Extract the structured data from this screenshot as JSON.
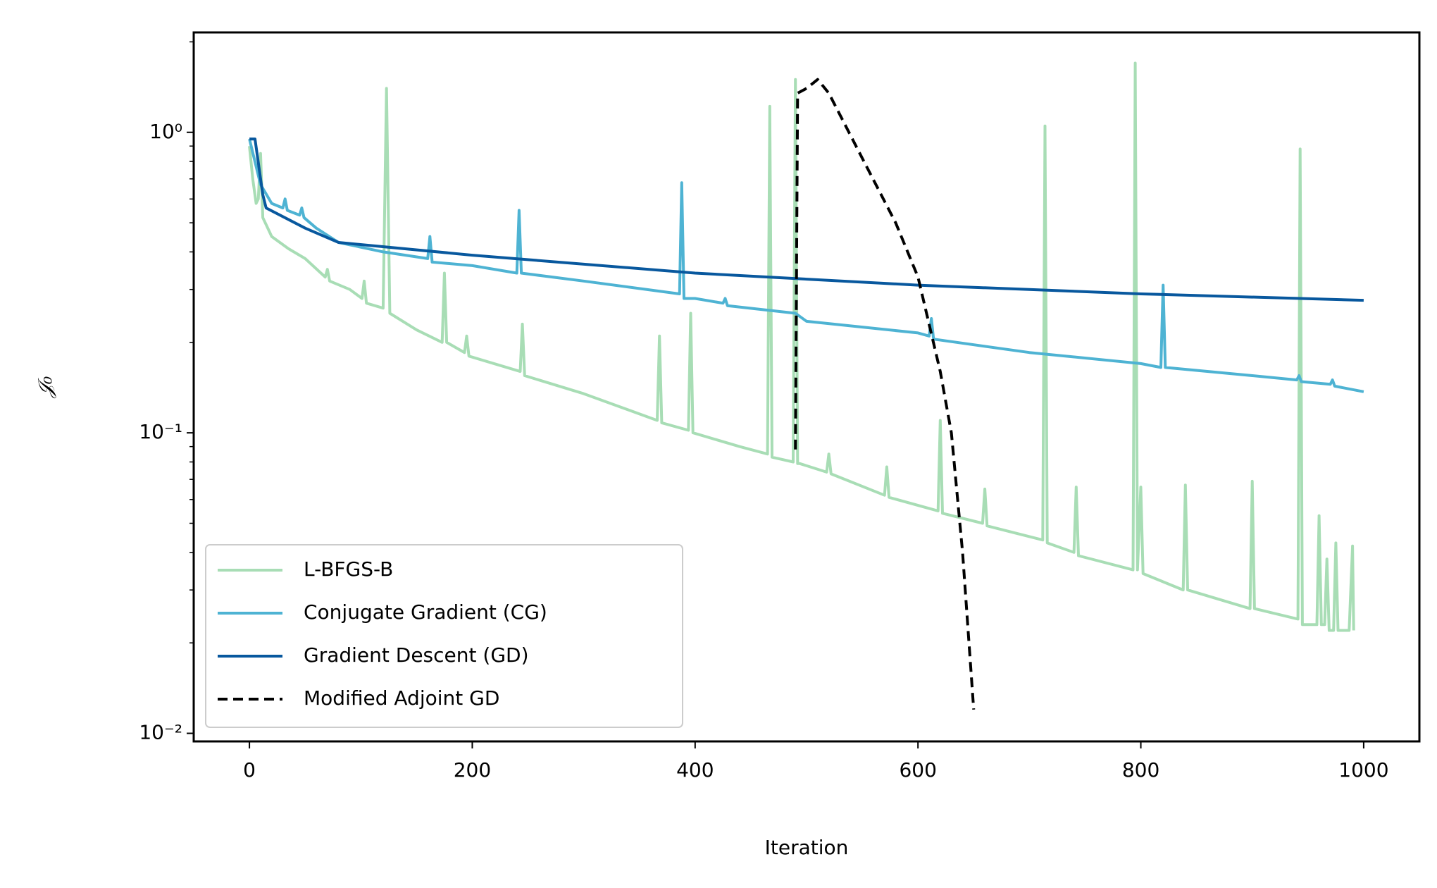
{
  "chart_data": {
    "type": "line",
    "xlabel": "Iteration",
    "ylabel": "𝒥₀",
    "xlim": [
      -50,
      1050
    ],
    "ylim": [
      0.0094,
      2.15
    ],
    "yscale": "log",
    "xticks": [
      0,
      200,
      400,
      600,
      800,
      1000
    ],
    "yticks": [
      {
        "value": 0.01,
        "label": "10⁻²"
      },
      {
        "value": 0.1,
        "label": "10⁻¹"
      },
      {
        "value": 1,
        "label": "10⁰"
      }
    ],
    "yminorticks": [
      0.02,
      0.03,
      0.04,
      0.05,
      0.06,
      0.07,
      0.08,
      0.09,
      0.2,
      0.3,
      0.4,
      0.5,
      0.6,
      0.7,
      0.8,
      0.9,
      2
    ],
    "legend": "lower left",
    "series": [
      {
        "name": "L-BFGS-B",
        "color": "#a8ddb5",
        "dash": false,
        "x": [
          0,
          3,
          6,
          8,
          10,
          12,
          20,
          35,
          50,
          68,
          70,
          72,
          90,
          101,
          103,
          105,
          120,
          123,
          126,
          150,
          173,
          175,
          177,
          193,
          195,
          197,
          243,
          245,
          247,
          300,
          366,
          368,
          370,
          394,
          396,
          398,
          440,
          465,
          467,
          469,
          488,
          490,
          492,
          494,
          518,
          520,
          522,
          570,
          572,
          574,
          618,
          620,
          622,
          658,
          660,
          662,
          712,
          714,
          716,
          740,
          742,
          744,
          793,
          795,
          797,
          800,
          802,
          838,
          840,
          842,
          898,
          900,
          902,
          941,
          943,
          945,
          958,
          960,
          962,
          965,
          967,
          969,
          973,
          975,
          977,
          987,
          990,
          991
        ],
        "values": [
          0.9,
          0.7,
          0.58,
          0.6,
          0.85,
          0.52,
          0.45,
          0.41,
          0.38,
          0.33,
          0.35,
          0.32,
          0.3,
          0.28,
          0.32,
          0.27,
          0.26,
          1.4,
          0.25,
          0.22,
          0.2,
          0.34,
          0.2,
          0.185,
          0.21,
          0.18,
          0.16,
          0.23,
          0.155,
          0.135,
          0.11,
          0.21,
          0.108,
          0.102,
          0.25,
          0.1,
          0.09,
          0.085,
          1.22,
          0.083,
          0.08,
          1.5,
          0.079,
          0.079,
          0.074,
          0.085,
          0.073,
          0.062,
          0.077,
          0.061,
          0.055,
          0.11,
          0.054,
          0.05,
          0.065,
          0.049,
          0.044,
          1.05,
          0.043,
          0.04,
          0.066,
          0.039,
          0.035,
          1.7,
          0.035,
          0.066,
          0.034,
          0.03,
          0.067,
          0.03,
          0.026,
          0.069,
          0.026,
          0.024,
          0.88,
          0.023,
          0.023,
          0.053,
          0.023,
          0.023,
          0.038,
          0.022,
          0.022,
          0.043,
          0.022,
          0.022,
          0.042,
          0.022
        ]
      },
      {
        "name": "Conjugate Gradient (CG)",
        "color": "#4eb3d3",
        "dash": false,
        "x": [
          0,
          10,
          20,
          30,
          32,
          34,
          45,
          47,
          49,
          60,
          80,
          120,
          160,
          162,
          164,
          200,
          240,
          242,
          244,
          300,
          386,
          388,
          390,
          400,
          425,
          427,
          429,
          490,
          500,
          600,
          610,
          612,
          614,
          700,
          800,
          818,
          820,
          822,
          900,
          940,
          942,
          944,
          970,
          972,
          974,
          1000
        ],
        "values": [
          0.95,
          0.67,
          0.58,
          0.56,
          0.6,
          0.55,
          0.53,
          0.56,
          0.52,
          0.48,
          0.43,
          0.4,
          0.38,
          0.45,
          0.37,
          0.36,
          0.34,
          0.55,
          0.34,
          0.32,
          0.29,
          0.68,
          0.28,
          0.28,
          0.27,
          0.28,
          0.265,
          0.25,
          0.235,
          0.215,
          0.21,
          0.24,
          0.205,
          0.185,
          0.17,
          0.165,
          0.31,
          0.165,
          0.155,
          0.15,
          0.155,
          0.148,
          0.145,
          0.15,
          0.143,
          0.137
        ]
      },
      {
        "name": "Gradient Descent (GD)",
        "color": "#08589e",
        "dash": false,
        "x": [
          0,
          5,
          12,
          15,
          50,
          80,
          200,
          400,
          600,
          800,
          1000
        ],
        "values": [
          0.95,
          0.95,
          0.62,
          0.56,
          0.48,
          0.43,
          0.39,
          0.34,
          0.31,
          0.29,
          0.276
        ]
      },
      {
        "name": "Modified Adjoint GD",
        "color": "#000000",
        "dash": true,
        "x": [
          490,
          492,
          500,
          510,
          520,
          550,
          580,
          600,
          620,
          630,
          640,
          650
        ],
        "values": [
          0.088,
          1.35,
          1.4,
          1.5,
          1.35,
          0.82,
          0.5,
          0.33,
          0.16,
          0.1,
          0.04,
          0.012
        ]
      }
    ]
  }
}
